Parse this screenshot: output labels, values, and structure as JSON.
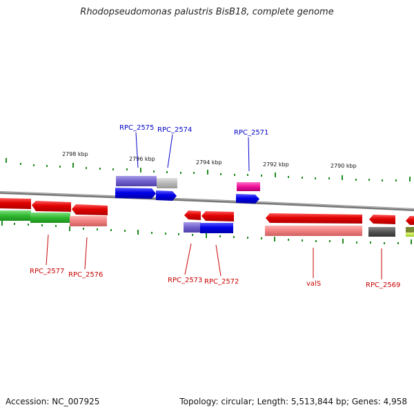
{
  "title": "Rhodopseudomonas palustris BisB18, complete genome",
  "footer": {
    "accession": "Accession: NC_007925",
    "summary": "Topology: circular; Length: 5,513,844 bp; Genes: 4,958"
  },
  "scale": [
    "2798 kbp",
    "2796 kbp",
    "2794 kbp",
    "2792 kbp",
    "2790 kbp"
  ],
  "genes_top": [
    "RPC_2575",
    "RPC_2574",
    "RPC_2571"
  ],
  "genes_bottom": [
    "RPC_2577",
    "RPC_2576",
    "RPC_2573",
    "RPC_2572",
    "valS",
    "RPC_2569"
  ],
  "colors": {
    "forward_cds": "#0000ee",
    "reverse_cds": "#ee0000",
    "forward_label": "#0000c8",
    "reverse_label": "#c80000",
    "backbone": "#888888",
    "tick": "#228822"
  }
}
